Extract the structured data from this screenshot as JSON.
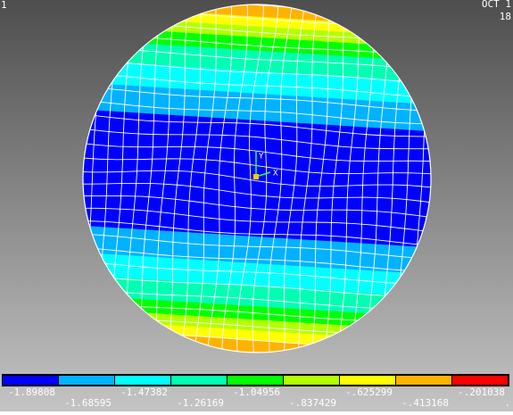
{
  "header": {
    "date": "OCT 1",
    "line2": "18",
    "corner_left": "1",
    "corner_right": "."
  },
  "triad": {
    "y_label": "Y",
    "x_label": "X"
  },
  "legend": {
    "colors": [
      "#0000ff",
      "#00b2ff",
      "#00ffff",
      "#00ffb2",
      "#00ff00",
      "#b2ff00",
      "#ffff00",
      "#ffb200",
      "#ff0000"
    ],
    "labels": [
      "-1.89808",
      "-1.68595",
      "-1.47382",
      "-1.26169",
      "-1.04956",
      "-.837429",
      "-.625299",
      "-.413168",
      "-.201038"
    ]
  }
}
